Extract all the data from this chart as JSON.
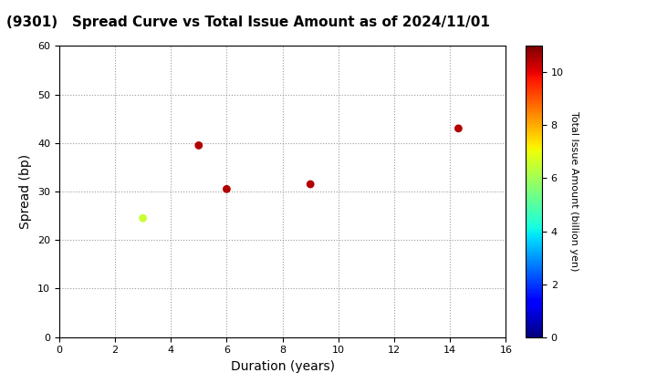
{
  "title": "(9301)   Spread Curve vs Total Issue Amount as of 2024/11/01",
  "xlabel": "Duration (years)",
  "ylabel": "Spread (bp)",
  "colorbar_label": "Total Issue Amount (billion yen)",
  "xlim": [
    0,
    16
  ],
  "ylim": [
    0,
    60
  ],
  "xticks": [
    0,
    2,
    4,
    6,
    8,
    10,
    12,
    14,
    16
  ],
  "yticks": [
    0,
    10,
    20,
    30,
    40,
    50,
    60
  ],
  "points": [
    {
      "duration": 3.0,
      "spread": 24.5,
      "amount": 6.5
    },
    {
      "duration": 5.0,
      "spread": 39.5,
      "amount": 10.5
    },
    {
      "duration": 6.0,
      "spread": 30.5,
      "amount": 10.5
    },
    {
      "duration": 9.0,
      "spread": 31.5,
      "amount": 10.5
    },
    {
      "duration": 14.3,
      "spread": 43.0,
      "amount": 10.5
    }
  ],
  "colormap": "jet",
  "vmin": 0,
  "vmax": 11,
  "marker_size": 40,
  "background_color": "#ffffff",
  "title_fontsize": 11,
  "axis_label_fontsize": 10,
  "colorbar_tick_labelsize": 8,
  "colorbar_labelsize": 8,
  "tick_labelsize": 8
}
